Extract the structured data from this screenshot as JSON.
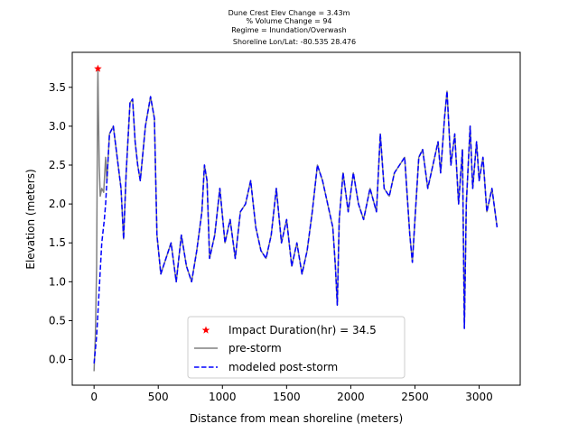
{
  "chart_data": {
    "type": "line",
    "title_lines": [
      "Dune Crest Elev Change = 3.43m",
      "% Volume Change = 94",
      "Regime = Inundation/Overwash",
      "Shoreline Lon/Lat: -80.535 28.476"
    ],
    "xlabel": "Distance from mean shoreline (meters)",
    "ylabel": "Elevation (meters)",
    "xlim": [
      -170,
      3320
    ],
    "ylim": [
      -0.33,
      3.95
    ],
    "xticks": [
      0,
      500,
      1000,
      1500,
      2000,
      2500,
      3000
    ],
    "yticks": [
      0.0,
      0.5,
      1.0,
      1.5,
      2.0,
      2.5,
      3.0,
      3.5
    ],
    "xtick_labels": [
      "0",
      "500",
      "1000",
      "1500",
      "2000",
      "2500",
      "3000"
    ],
    "ytick_labels": [
      "0.0",
      "0.5",
      "1.0",
      "1.5",
      "2.0",
      "2.5",
      "3.0",
      "3.5"
    ],
    "grid": false,
    "legend_position": "lower-center",
    "legend": [
      {
        "label": "Impact Duration(hr) = 34.5",
        "marker": "star",
        "color": "#ff0000"
      },
      {
        "label": "pre-storm",
        "linestyle": "solid",
        "color": "#808080"
      },
      {
        "label": "modeled post-storm",
        "linestyle": "dashed",
        "color": "#0000ff"
      }
    ],
    "marker_point": {
      "x": 30,
      "y": 3.74
    },
    "series": [
      {
        "name": "pre-storm",
        "color": "#808080",
        "linestyle": "solid",
        "points": [
          [
            0,
            -0.15
          ],
          [
            10,
            0.3
          ],
          [
            20,
            1.2
          ],
          [
            28,
            3.5
          ],
          [
            30,
            3.74
          ],
          [
            34,
            3.2
          ],
          [
            40,
            2.5
          ],
          [
            48,
            2.1
          ],
          [
            60,
            2.2
          ],
          [
            75,
            2.15
          ],
          [
            90,
            2.6
          ],
          [
            100,
            2.3
          ],
          [
            120,
            2.9
          ],
          [
            150,
            3.0
          ],
          [
            180,
            2.6
          ],
          [
            210,
            2.2
          ],
          [
            230,
            1.55
          ],
          [
            250,
            2.4
          ],
          [
            280,
            3.3
          ],
          [
            300,
            3.35
          ],
          [
            320,
            2.8
          ],
          [
            340,
            2.5
          ],
          [
            360,
            2.3
          ],
          [
            400,
            3.0
          ],
          [
            440,
            3.38
          ],
          [
            470,
            3.1
          ],
          [
            490,
            1.6
          ],
          [
            520,
            1.1
          ],
          [
            560,
            1.3
          ],
          [
            600,
            1.5
          ],
          [
            640,
            1.0
          ],
          [
            680,
            1.6
          ],
          [
            720,
            1.2
          ],
          [
            760,
            1.0
          ],
          [
            800,
            1.4
          ],
          [
            840,
            1.9
          ],
          [
            860,
            2.5
          ],
          [
            880,
            2.3
          ],
          [
            900,
            1.3
          ],
          [
            940,
            1.6
          ],
          [
            980,
            2.2
          ],
          [
            1020,
            1.5
          ],
          [
            1060,
            1.8
          ],
          [
            1100,
            1.3
          ],
          [
            1140,
            1.9
          ],
          [
            1180,
            2.0
          ],
          [
            1220,
            2.3
          ],
          [
            1260,
            1.7
          ],
          [
            1300,
            1.4
          ],
          [
            1340,
            1.3
          ],
          [
            1380,
            1.6
          ],
          [
            1420,
            2.2
          ],
          [
            1460,
            1.5
          ],
          [
            1500,
            1.8
          ],
          [
            1540,
            1.2
          ],
          [
            1580,
            1.5
          ],
          [
            1620,
            1.1
          ],
          [
            1660,
            1.4
          ],
          [
            1700,
            1.9
          ],
          [
            1740,
            2.5
          ],
          [
            1780,
            2.3
          ],
          [
            1820,
            2.0
          ],
          [
            1860,
            1.7
          ],
          [
            1880,
            1.2
          ],
          [
            1895,
            0.7
          ],
          [
            1910,
            1.8
          ],
          [
            1940,
            2.4
          ],
          [
            1980,
            1.9
          ],
          [
            2020,
            2.4
          ],
          [
            2060,
            2.0
          ],
          [
            2100,
            1.8
          ],
          [
            2150,
            2.2
          ],
          [
            2200,
            1.9
          ],
          [
            2230,
            2.9
          ],
          [
            2260,
            2.2
          ],
          [
            2300,
            2.1
          ],
          [
            2340,
            2.4
          ],
          [
            2380,
            2.5
          ],
          [
            2420,
            2.6
          ],
          [
            2460,
            1.6
          ],
          [
            2480,
            1.25
          ],
          [
            2500,
            1.8
          ],
          [
            2530,
            2.6
          ],
          [
            2560,
            2.7
          ],
          [
            2600,
            2.2
          ],
          [
            2640,
            2.5
          ],
          [
            2680,
            2.8
          ],
          [
            2700,
            2.4
          ],
          [
            2730,
            3.1
          ],
          [
            2750,
            3.45
          ],
          [
            2780,
            2.5
          ],
          [
            2810,
            2.9
          ],
          [
            2840,
            2.0
          ],
          [
            2870,
            2.7
          ],
          [
            2885,
            0.4
          ],
          [
            2900,
            2.0
          ],
          [
            2930,
            3.0
          ],
          [
            2950,
            2.2
          ],
          [
            2980,
            2.8
          ],
          [
            3000,
            2.3
          ],
          [
            3030,
            2.6
          ],
          [
            3060,
            1.9
          ],
          [
            3100,
            2.2
          ],
          [
            3140,
            1.7
          ]
        ]
      },
      {
        "name": "modeled post-storm",
        "color": "#0000ff",
        "linestyle": "dashed",
        "points": [
          [
            0,
            -0.05
          ],
          [
            20,
            0.3
          ],
          [
            40,
            0.9
          ],
          [
            60,
            1.5
          ],
          [
            80,
            1.8
          ],
          [
            90,
            2.0
          ],
          [
            100,
            2.3
          ],
          [
            120,
            2.9
          ],
          [
            150,
            3.0
          ],
          [
            180,
            2.6
          ],
          [
            210,
            2.2
          ],
          [
            230,
            1.55
          ],
          [
            250,
            2.4
          ],
          [
            280,
            3.3
          ],
          [
            300,
            3.35
          ],
          [
            320,
            2.8
          ],
          [
            340,
            2.5
          ],
          [
            360,
            2.3
          ],
          [
            400,
            3.0
          ],
          [
            440,
            3.38
          ],
          [
            470,
            3.1
          ],
          [
            490,
            1.6
          ],
          [
            520,
            1.1
          ],
          [
            560,
            1.3
          ],
          [
            600,
            1.5
          ],
          [
            640,
            1.0
          ],
          [
            680,
            1.6
          ],
          [
            720,
            1.2
          ],
          [
            760,
            1.0
          ],
          [
            800,
            1.4
          ],
          [
            840,
            1.9
          ],
          [
            860,
            2.5
          ],
          [
            880,
            2.3
          ],
          [
            900,
            1.3
          ],
          [
            940,
            1.6
          ],
          [
            980,
            2.2
          ],
          [
            1020,
            1.5
          ],
          [
            1060,
            1.8
          ],
          [
            1100,
            1.3
          ],
          [
            1140,
            1.9
          ],
          [
            1180,
            2.0
          ],
          [
            1220,
            2.3
          ],
          [
            1260,
            1.7
          ],
          [
            1300,
            1.4
          ],
          [
            1340,
            1.3
          ],
          [
            1380,
            1.6
          ],
          [
            1420,
            2.2
          ],
          [
            1460,
            1.5
          ],
          [
            1500,
            1.8
          ],
          [
            1540,
            1.2
          ],
          [
            1580,
            1.5
          ],
          [
            1620,
            1.1
          ],
          [
            1660,
            1.4
          ],
          [
            1700,
            1.9
          ],
          [
            1740,
            2.5
          ],
          [
            1780,
            2.3
          ],
          [
            1820,
            2.0
          ],
          [
            1860,
            1.7
          ],
          [
            1880,
            1.2
          ],
          [
            1895,
            0.7
          ],
          [
            1910,
            1.8
          ],
          [
            1940,
            2.4
          ],
          [
            1980,
            1.9
          ],
          [
            2020,
            2.4
          ],
          [
            2060,
            2.0
          ],
          [
            2100,
            1.8
          ],
          [
            2150,
            2.2
          ],
          [
            2200,
            1.9
          ],
          [
            2230,
            2.9
          ],
          [
            2260,
            2.2
          ],
          [
            2300,
            2.1
          ],
          [
            2340,
            2.4
          ],
          [
            2380,
            2.5
          ],
          [
            2420,
            2.6
          ],
          [
            2460,
            1.6
          ],
          [
            2480,
            1.25
          ],
          [
            2500,
            1.8
          ],
          [
            2530,
            2.6
          ],
          [
            2560,
            2.7
          ],
          [
            2600,
            2.2
          ],
          [
            2640,
            2.5
          ],
          [
            2680,
            2.8
          ],
          [
            2700,
            2.4
          ],
          [
            2730,
            3.1
          ],
          [
            2750,
            3.45
          ],
          [
            2780,
            2.5
          ],
          [
            2810,
            2.9
          ],
          [
            2840,
            2.0
          ],
          [
            2870,
            2.7
          ],
          [
            2885,
            0.4
          ],
          [
            2900,
            2.0
          ],
          [
            2930,
            3.0
          ],
          [
            2950,
            2.2
          ],
          [
            2980,
            2.8
          ],
          [
            3000,
            2.3
          ],
          [
            3030,
            2.6
          ],
          [
            3060,
            1.9
          ],
          [
            3100,
            2.2
          ],
          [
            3140,
            1.7
          ]
        ]
      }
    ]
  }
}
